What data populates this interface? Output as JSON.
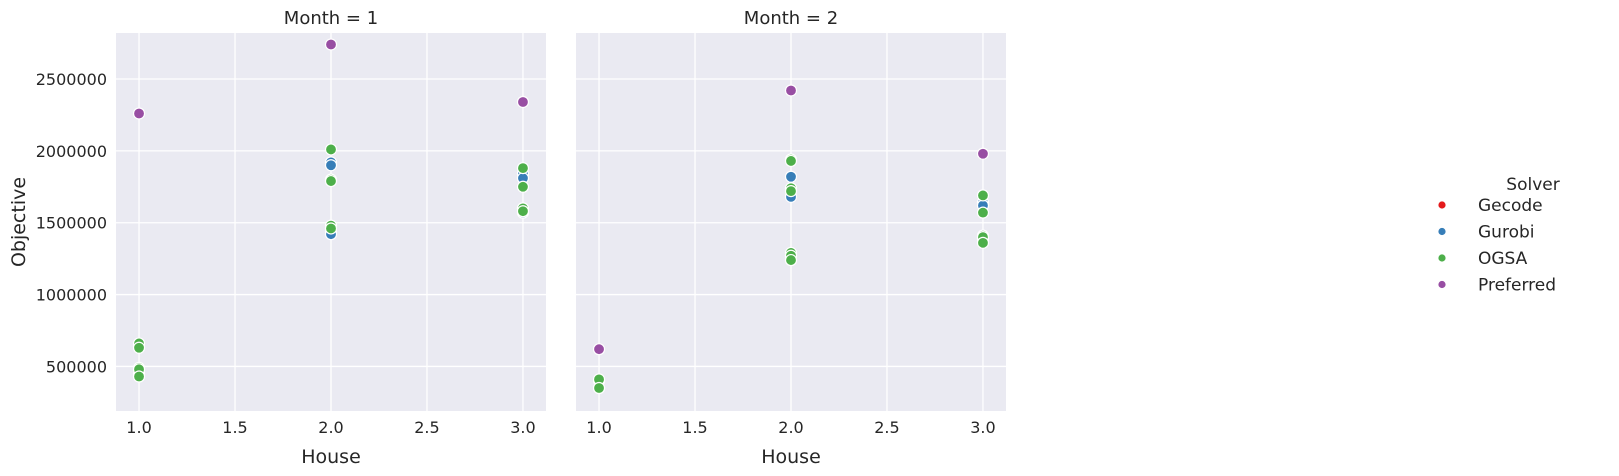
{
  "chart_data": {
    "type": "scatter",
    "xlabel": "House",
    "ylabel": "Objective",
    "xlim": [
      0.88,
      3.12
    ],
    "ylim": [
      190000,
      2820000
    ],
    "xticks": [
      1.0,
      1.5,
      2.0,
      2.5,
      3.0
    ],
    "xtick_labels": [
      "1.0",
      "1.5",
      "2.0",
      "2.5",
      "3.0"
    ],
    "yticks": [
      500000,
      1000000,
      1500000,
      2000000,
      2500000
    ],
    "ytick_labels": [
      "500000",
      "1000000",
      "1500000",
      "2000000",
      "2500000"
    ],
    "grid": true,
    "legend": {
      "title": "Solver",
      "placement": "right",
      "entries": [
        {
          "name": "Gecode",
          "color": "#e41a1c"
        },
        {
          "name": "Gurobi",
          "color": "#377eb8"
        },
        {
          "name": "OGSA",
          "color": "#4daf4a"
        },
        {
          "name": "Preferred",
          "color": "#984ea3"
        }
      ]
    },
    "panels": [
      {
        "title": "Month = 1",
        "series": [
          {
            "name": "Gurobi",
            "points": [
              [
                1,
                640000
              ],
              [
                1,
                450000
              ],
              [
                2,
                1920000
              ],
              [
                2,
                1900000
              ],
              [
                2,
                1440000
              ],
              [
                2,
                1420000
              ],
              [
                3,
                1840000
              ],
              [
                3,
                1810000
              ],
              [
                3,
                1600000
              ],
              [
                3,
                1570000
              ]
            ]
          },
          {
            "name": "OGSA",
            "points": [
              [
                1,
                660000
              ],
              [
                1,
                630000
              ],
              [
                1,
                490000
              ],
              [
                1,
                480000
              ],
              [
                1,
                430000
              ],
              [
                2,
                2010000
              ],
              [
                2,
                1800000
              ],
              [
                2,
                1790000
              ],
              [
                2,
                1480000
              ],
              [
                2,
                1460000
              ],
              [
                3,
                1880000
              ],
              [
                3,
                1750000
              ],
              [
                3,
                1600000
              ],
              [
                3,
                1580000
              ]
            ]
          },
          {
            "name": "Preferred",
            "points": [
              [
                1,
                2260000
              ],
              [
                2,
                2740000
              ],
              [
                3,
                2340000
              ]
            ]
          }
        ]
      },
      {
        "title": "Month = 2",
        "series": [
          {
            "name": "Gurobi",
            "points": [
              [
                1,
                400000
              ],
              [
                1,
                350000
              ],
              [
                2,
                1820000
              ],
              [
                2,
                1680000
              ],
              [
                2,
                1270000
              ],
              [
                2,
                1240000
              ],
              [
                3,
                1640000
              ],
              [
                3,
                1620000
              ],
              [
                3,
                1390000
              ],
              [
                3,
                1370000
              ]
            ]
          },
          {
            "name": "OGSA",
            "points": [
              [
                1,
                410000
              ],
              [
                1,
                350000
              ],
              [
                2,
                1940000
              ],
              [
                2,
                1930000
              ],
              [
                2,
                1740000
              ],
              [
                2,
                1720000
              ],
              [
                2,
                1290000
              ],
              [
                2,
                1270000
              ],
              [
                2,
                1240000
              ],
              [
                3,
                1690000
              ],
              [
                3,
                1570000
              ],
              [
                3,
                1410000
              ],
              [
                3,
                1400000
              ],
              [
                3,
                1360000
              ]
            ]
          },
          {
            "name": "Preferred",
            "points": [
              [
                1,
                620000
              ],
              [
                2,
                2420000
              ],
              [
                3,
                1980000
              ]
            ]
          }
        ]
      }
    ]
  }
}
